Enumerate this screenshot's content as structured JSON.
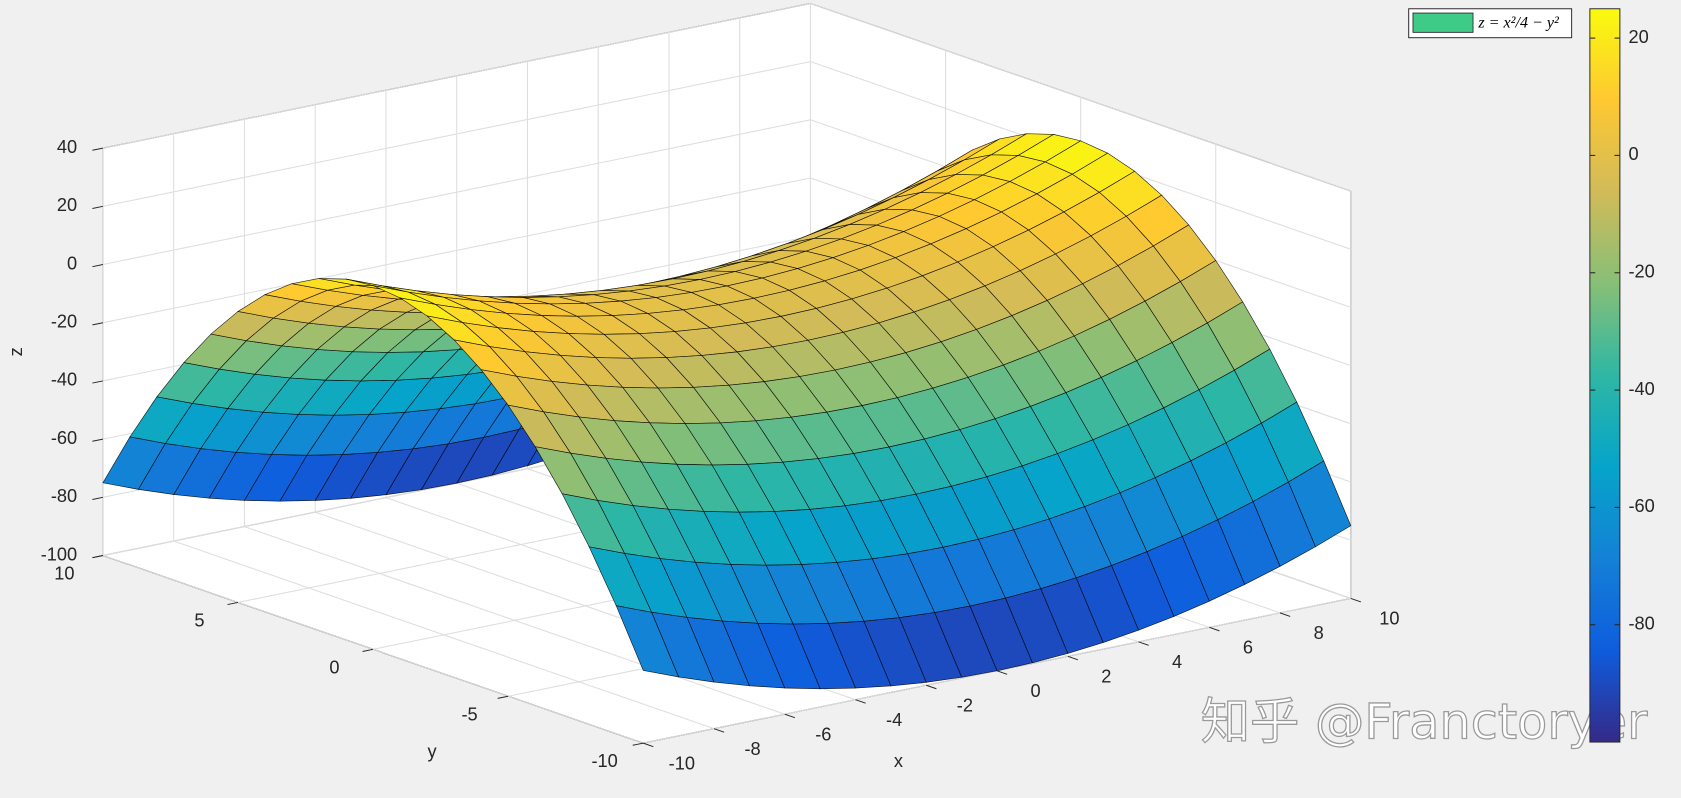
{
  "chart_data": {
    "type": "surface",
    "name": "z = x²/4 − y²",
    "legend_color": "#3ecb87",
    "legend": "northeast",
    "colormap": "parula",
    "xlabel": "x",
    "ylabel": "y",
    "zlabel": "z",
    "grid": true,
    "box": true,
    "x": [
      -10,
      -9,
      -8,
      -7,
      -6,
      -5,
      -4,
      -3,
      -2,
      -1,
      0,
      1,
      2,
      3,
      4,
      5,
      6,
      7,
      8,
      9,
      10
    ],
    "y": [
      -10,
      -9,
      -8,
      -7,
      -6,
      -5,
      -4,
      -3,
      -2,
      -1,
      0,
      1,
      2,
      3,
      4,
      5,
      6,
      7,
      8,
      9,
      10
    ],
    "z": [
      [
        -75,
        -79.75,
        -84,
        -87.75,
        -91,
        -93.75,
        -96,
        -97.75,
        -99,
        -99.75,
        -100,
        -99.75,
        -99,
        -97.75,
        -96,
        -93.75,
        -91,
        -87.75,
        -84,
        -79.75,
        -75
      ],
      [
        -56,
        -60.75,
        -65,
        -68.75,
        -72,
        -74.75,
        -77,
        -78.75,
        -80,
        -80.75,
        -81,
        -80.75,
        -80,
        -78.75,
        -77,
        -74.75,
        -72,
        -68.75,
        -65,
        -60.75,
        -56
      ],
      [
        -39,
        -43.75,
        -48,
        -51.75,
        -55,
        -57.75,
        -60,
        -61.75,
        -63,
        -63.75,
        -64,
        -63.75,
        -63,
        -61.75,
        -60,
        -57.75,
        -55,
        -51.75,
        -48,
        -43.75,
        -39
      ],
      [
        -24,
        -28.75,
        -33,
        -36.75,
        -40,
        -42.75,
        -45,
        -46.75,
        -48,
        -48.75,
        -49,
        -48.75,
        -48,
        -46.75,
        -45,
        -42.75,
        -40,
        -36.75,
        -33,
        -28.75,
        -24
      ],
      [
        -11,
        -15.75,
        -20,
        -23.75,
        -27,
        -29.75,
        -32,
        -33.75,
        -35,
        -35.75,
        -36,
        -35.75,
        -35,
        -33.75,
        -32,
        -29.75,
        -27,
        -23.75,
        -20,
        -15.75,
        -11
      ],
      [
        0,
        -4.75,
        -9,
        -12.75,
        -16,
        -18.75,
        -21,
        -22.75,
        -24,
        -24.75,
        -25,
        -24.75,
        -24,
        -22.75,
        -21,
        -18.75,
        -16,
        -12.75,
        -9,
        -4.75,
        0
      ],
      [
        9,
        4.25,
        0,
        -3.75,
        -7,
        -9.75,
        -12,
        -13.75,
        -15,
        -15.75,
        -16,
        -15.75,
        -15,
        -13.75,
        -12,
        -9.75,
        -7,
        -3.75,
        0,
        4.25,
        9
      ],
      [
        16,
        11.25,
        7,
        3.25,
        0,
        -2.75,
        -5,
        -6.75,
        -8,
        -8.75,
        -9,
        -8.75,
        -8,
        -6.75,
        -5,
        -2.75,
        0,
        3.25,
        7,
        11.25,
        16
      ],
      [
        21,
        16.25,
        12,
        8.25,
        5,
        2.25,
        0,
        -1.75,
        -3,
        -3.75,
        -4,
        -3.75,
        -3,
        -1.75,
        0,
        2.25,
        5,
        8.25,
        12,
        16.25,
        21
      ],
      [
        24,
        19.25,
        15,
        11.25,
        8,
        5.25,
        3,
        1.25,
        0,
        -0.75,
        -1,
        -0.75,
        0,
        1.25,
        3,
        5.25,
        8,
        11.25,
        15,
        19.25,
        24
      ],
      [
        25,
        20.25,
        16,
        12.25,
        9,
        6.25,
        4,
        2.25,
        1,
        0.25,
        0,
        0.25,
        1,
        2.25,
        4,
        6.25,
        9,
        12.25,
        16,
        20.25,
        25
      ],
      [
        24,
        19.25,
        15,
        11.25,
        8,
        5.25,
        3,
        1.25,
        0,
        -0.75,
        -1,
        -0.75,
        0,
        1.25,
        3,
        5.25,
        8,
        11.25,
        15,
        19.25,
        24
      ],
      [
        21,
        16.25,
        12,
        8.25,
        5,
        2.25,
        0,
        -1.75,
        -3,
        -3.75,
        -4,
        -3.75,
        -3,
        -1.75,
        0,
        2.25,
        5,
        8.25,
        12,
        16.25,
        21
      ],
      [
        16,
        11.25,
        7,
        3.25,
        0,
        -2.75,
        -5,
        -6.75,
        -8,
        -8.75,
        -9,
        -8.75,
        -8,
        -6.75,
        -5,
        -2.75,
        0,
        3.25,
        7,
        11.25,
        16
      ],
      [
        9,
        4.25,
        0,
        -3.75,
        -7,
        -9.75,
        -12,
        -13.75,
        -15,
        -15.75,
        -16,
        -15.75,
        -15,
        -13.75,
        -12,
        -9.75,
        -7,
        -3.75,
        0,
        4.25,
        9
      ],
      [
        0,
        -4.75,
        -9,
        -12.75,
        -16,
        -18.75,
        -21,
        -22.75,
        -24,
        -24.75,
        -25,
        -24.75,
        -24,
        -22.75,
        -21,
        -18.75,
        -16,
        -12.75,
        -9,
        -4.75,
        0
      ],
      [
        -11,
        -15.75,
        -20,
        -23.75,
        -27,
        -29.75,
        -32,
        -33.75,
        -35,
        -35.75,
        -36,
        -35.75,
        -35,
        -33.75,
        -32,
        -29.75,
        -27,
        -23.75,
        -20,
        -15.75,
        -11
      ],
      [
        -24,
        -28.75,
        -33,
        -36.75,
        -40,
        -42.75,
        -45,
        -46.75,
        -48,
        -48.75,
        -49,
        -48.75,
        -48,
        -46.75,
        -45,
        -42.75,
        -40,
        -36.75,
        -33,
        -28.75,
        -24
      ],
      [
        -39,
        -43.75,
        -48,
        -51.75,
        -55,
        -57.75,
        -60,
        -61.75,
        -63,
        -63.75,
        -64,
        -63.75,
        -63,
        -61.75,
        -60,
        -57.75,
        -55,
        -51.75,
        -48,
        -43.75,
        -39
      ],
      [
        -56,
        -60.75,
        -65,
        -68.75,
        -72,
        -74.75,
        -77,
        -78.75,
        -80,
        -80.75,
        -81,
        -80.75,
        -80,
        -78.75,
        -77,
        -74.75,
        -72,
        -68.75,
        -65,
        -60.75,
        -56
      ],
      [
        -75,
        -79.75,
        -84,
        -87.75,
        -91,
        -93.75,
        -96,
        -97.75,
        -99,
        -99.75,
        -100,
        -99.75,
        -99,
        -97.75,
        -96,
        -93.75,
        -91,
        -87.75,
        -84,
        -79.75,
        -75
      ]
    ],
    "xlim": [
      -10,
      10
    ],
    "xticks": [
      -10,
      -8,
      -6,
      -4,
      -2,
      0,
      2,
      4,
      6,
      8,
      10
    ],
    "ylim": [
      -10,
      10
    ],
    "yticks": [
      -10,
      -5,
      0,
      5,
      10
    ],
    "zlim": [
      -100,
      40
    ],
    "zticks": [
      -100,
      -80,
      -60,
      -40,
      -20,
      0,
      20,
      40
    ],
    "clim": [
      -100,
      25
    ],
    "cticks": [
      20,
      0,
      -20,
      -40,
      -60,
      -80
    ]
  },
  "watermark": "知乎 @Franctoryer"
}
